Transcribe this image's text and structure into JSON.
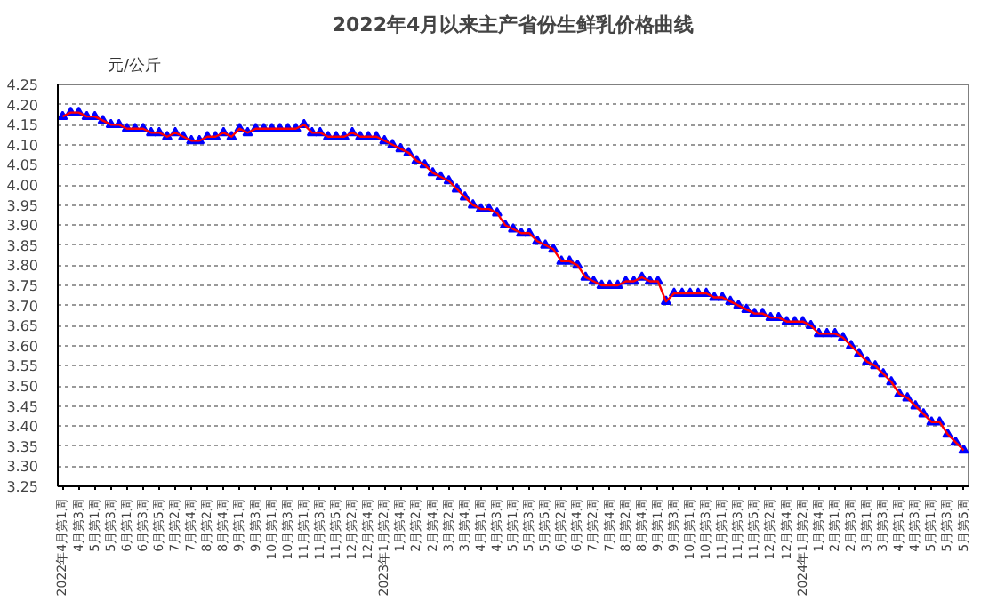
{
  "chart_data": {
    "type": "line",
    "title": "2022年4月以来主产省份生鲜乳价格曲线",
    "ylabel": "元/公斤",
    "categories": [
      "2022年4月第1周",
      null,
      "4月第3周",
      null,
      "5月第1周",
      null,
      "5月第3周",
      null,
      "6月第1周",
      null,
      "6月第3周",
      null,
      "6月第5周",
      null,
      "7月第2周",
      null,
      "7月第4周",
      null,
      "8月第2周",
      null,
      "8月第4周",
      null,
      "9月第1周",
      null,
      "9月第3周",
      null,
      "10月第1周",
      null,
      "10月第3周",
      null,
      "11月第1周",
      null,
      "11月第3周",
      null,
      "11月第5周",
      null,
      "12月第2周",
      null,
      "12月第4周",
      null,
      "2023年1月第2周",
      null,
      "1月第4周",
      null,
      "2月第2周",
      null,
      "2月第4周",
      null,
      "3月第2周",
      null,
      "3月第4周",
      null,
      "4月第1周",
      null,
      "4月第3周",
      null,
      "5月第1周",
      null,
      "5月第3周",
      null,
      "5月第5周",
      null,
      "6月第2周",
      null,
      "6月第4周",
      null,
      "7月第2周",
      null,
      "7月第4周",
      null,
      "8月第2周",
      null,
      "8月第4周",
      null,
      "9月第1周",
      null,
      "9月第3周",
      null,
      "10月第1周",
      null,
      "10月第3周",
      null,
      "11月第1周",
      null,
      "11月第3周",
      null,
      "11月第5周",
      null,
      "12月第2周",
      null,
      "12月第4周",
      null,
      "2024年1月第2周",
      null,
      "1月第4周",
      null,
      "2月第1周",
      null,
      "2月第3周",
      null,
      "3月第1周",
      null,
      "3月第3周",
      null,
      "4月第1周",
      null,
      "4月第3周",
      null,
      "5月第1周",
      null,
      "5月第3周",
      null,
      "5月第5周"
    ],
    "series": [
      {
        "color": "#0000ff",
        "type": "scatter",
        "marker": "triangle",
        "values": [
          4.17,
          4.18,
          4.18,
          4.17,
          4.17,
          4.16,
          4.15,
          4.15,
          4.14,
          4.14,
          4.14,
          4.13,
          4.13,
          4.12,
          4.13,
          4.12,
          4.11,
          4.11,
          4.12,
          4.12,
          4.13,
          4.12,
          4.14,
          4.13,
          4.14,
          4.14,
          4.14,
          4.14,
          4.14,
          4.14,
          4.15,
          4.13,
          4.13,
          4.12,
          4.12,
          4.12,
          4.13,
          4.12,
          4.12,
          4.12,
          4.11,
          4.1,
          4.09,
          4.08,
          4.06,
          4.05,
          4.03,
          4.02,
          4.01,
          3.99,
          3.97,
          3.95,
          3.94,
          3.94,
          3.93,
          3.9,
          3.89,
          3.88,
          3.88,
          3.86,
          3.85,
          3.84,
          3.81,
          3.81,
          3.8,
          3.77,
          3.76,
          3.75,
          3.75,
          3.75,
          3.76,
          3.76,
          3.77,
          3.76,
          3.76,
          3.71,
          3.73,
          3.73,
          3.73,
          3.73,
          3.73,
          3.72,
          3.72,
          3.71,
          3.7,
          3.69,
          3.68,
          3.68,
          3.67,
          3.67,
          3.66,
          3.66,
          3.66,
          3.65,
          3.63,
          3.63,
          3.63,
          3.62,
          3.6,
          3.58,
          3.56,
          3.55,
          3.53,
          3.51,
          3.48,
          3.47,
          3.45,
          3.43,
          3.41,
          3.41,
          3.38,
          3.36,
          3.34
        ]
      },
      {
        "color": "#ff0000",
        "marker": "none",
        "values": [
          4.17,
          4.18,
          4.18,
          4.17,
          4.17,
          4.16,
          4.15,
          4.15,
          4.14,
          4.14,
          4.14,
          4.13,
          4.13,
          4.12,
          4.13,
          4.12,
          4.11,
          4.11,
          4.12,
          4.12,
          4.13,
          4.12,
          4.14,
          4.13,
          4.14,
          4.14,
          4.14,
          4.14,
          4.14,
          4.14,
          4.15,
          4.13,
          4.13,
          4.12,
          4.12,
          4.12,
          4.13,
          4.12,
          4.12,
          4.12,
          4.11,
          4.1,
          4.09,
          4.08,
          4.06,
          4.05,
          4.03,
          4.02,
          4.01,
          3.99,
          3.97,
          3.95,
          3.94,
          3.94,
          3.93,
          3.9,
          3.89,
          3.88,
          3.88,
          3.86,
          3.85,
          3.84,
          3.81,
          3.81,
          3.8,
          3.77,
          3.76,
          3.75,
          3.75,
          3.75,
          3.76,
          3.76,
          3.77,
          3.76,
          3.76,
          3.71,
          3.73,
          3.73,
          3.73,
          3.73,
          3.73,
          3.72,
          3.72,
          3.71,
          3.7,
          3.69,
          3.68,
          3.68,
          3.67,
          3.67,
          3.66,
          3.66,
          3.66,
          3.65,
          3.63,
          3.63,
          3.63,
          3.62,
          3.6,
          3.58,
          3.56,
          3.55,
          3.53,
          3.51,
          3.48,
          3.47,
          3.45,
          3.43,
          3.41,
          3.41,
          3.38,
          3.36,
          3.34
        ]
      }
    ],
    "ylim": [
      3.25,
      4.25
    ],
    "yticks": [
      {
        "value": 3.25,
        "label": "3.25"
      },
      {
        "value": 3.3,
        "label": "3.30"
      },
      {
        "value": 3.35,
        "label": "3.35"
      },
      {
        "value": 3.4,
        "label": "3.40"
      },
      {
        "value": 3.45,
        "label": "3.45"
      },
      {
        "value": 3.5,
        "label": "3.50"
      },
      {
        "value": 3.55,
        "label": "3.55"
      },
      {
        "value": 3.6,
        "label": "3.60"
      },
      {
        "value": 3.65,
        "label": "3.65"
      },
      {
        "value": 3.7,
        "label": "3.70"
      },
      {
        "value": 3.75,
        "label": "3.75"
      },
      {
        "value": 3.8,
        "label": "3.80"
      },
      {
        "value": 3.85,
        "label": "3.85"
      },
      {
        "value": 3.9,
        "label": "3.90"
      },
      {
        "value": 3.95,
        "label": "3.95"
      },
      {
        "value": 4.0,
        "label": "4.00"
      },
      {
        "value": 4.05,
        "label": "4.05"
      },
      {
        "value": 4.1,
        "label": "4.10"
      },
      {
        "value": 4.15,
        "label": "4.15"
      },
      {
        "value": 4.2,
        "label": "4.20"
      },
      {
        "value": 4.25,
        "label": "4.25"
      }
    ],
    "grid": "y",
    "line_style": "solid"
  }
}
